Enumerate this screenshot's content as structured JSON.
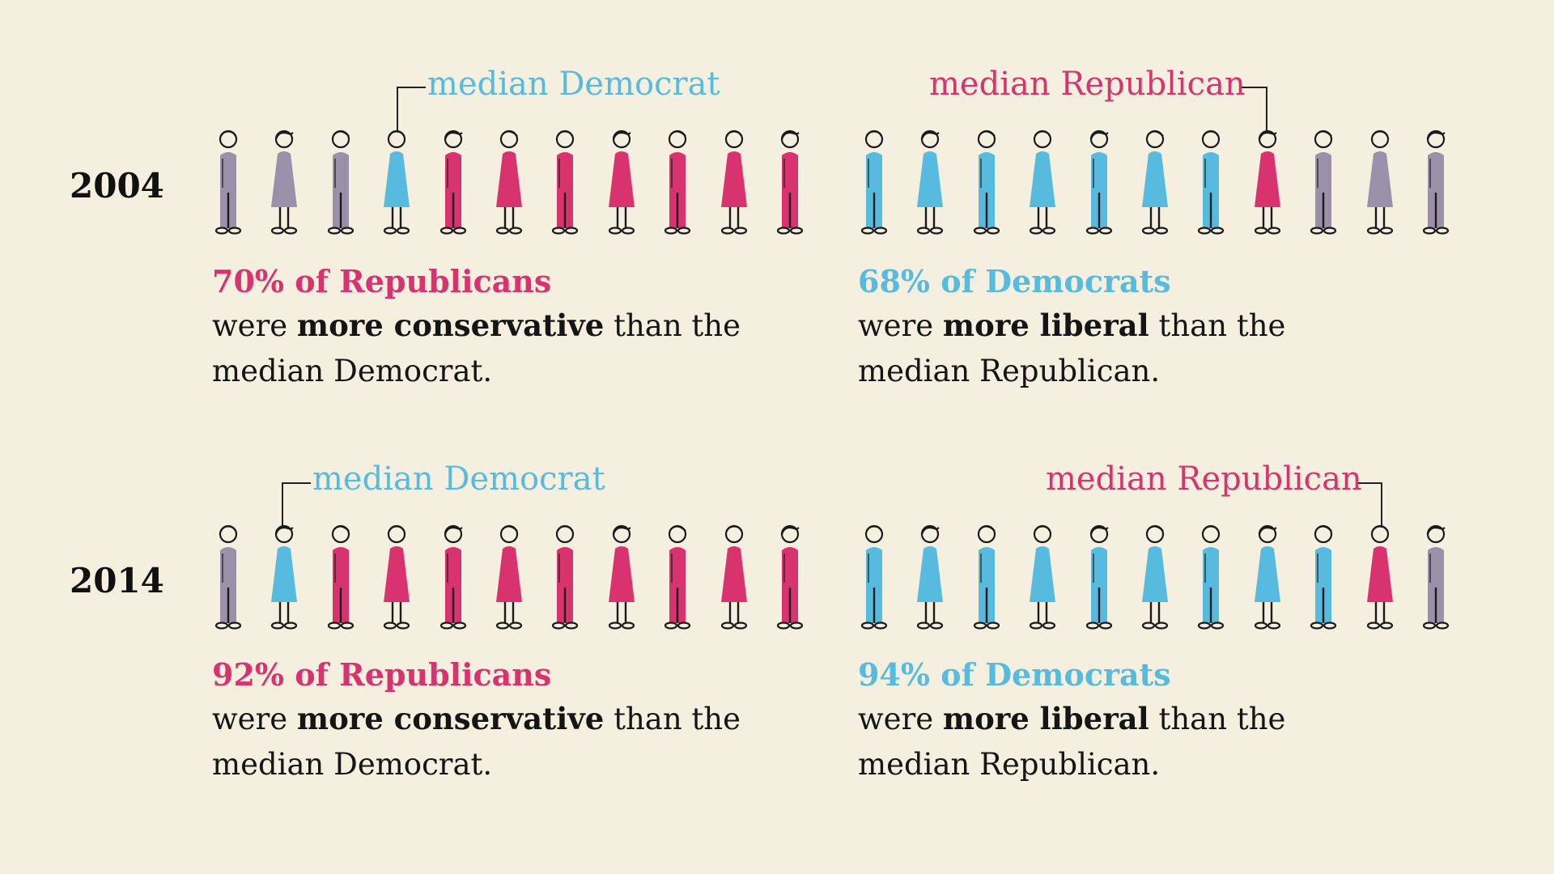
{
  "colors": {
    "background": "#f4efdf",
    "democrat": "#57bbdf",
    "republican": "#d9336f",
    "independent": "#9b8fa9",
    "ink": "#1a1a1a"
  },
  "panels": [
    {
      "year": "2004",
      "republicans": {
        "median_label": "median Democrat",
        "people_colors": [
          "independent",
          "independent",
          "independent",
          "democrat",
          "republican",
          "republican",
          "republican",
          "republican",
          "republican",
          "republican",
          "republican"
        ],
        "median_index": 3,
        "headline": "70% of Republicans",
        "body_pre": "were ",
        "body_bold": "more conservative",
        "body_post": " than the",
        "body_line2": "median Democrat."
      },
      "democrats": {
        "median_label": "median Republican",
        "people_colors": [
          "democrat",
          "democrat",
          "democrat",
          "democrat",
          "democrat",
          "democrat",
          "democrat",
          "republican",
          "independent",
          "independent",
          "independent"
        ],
        "median_index": 7,
        "headline": "68% of Democrats",
        "body_pre": "were ",
        "body_bold": "more liberal",
        "body_post": " than the",
        "body_line2": "median Republican."
      }
    },
    {
      "year": "2014",
      "republicans": {
        "median_label": "median Democrat",
        "people_colors": [
          "independent",
          "democrat",
          "republican",
          "republican",
          "republican",
          "republican",
          "republican",
          "republican",
          "republican",
          "republican",
          "republican"
        ],
        "median_index": 1,
        "headline": "92% of Republicans",
        "body_pre": "were ",
        "body_bold": "more conservative",
        "body_post": " than the",
        "body_line2": "median Democrat."
      },
      "democrats": {
        "median_label": "median Republican",
        "people_colors": [
          "democrat",
          "democrat",
          "democrat",
          "democrat",
          "democrat",
          "democrat",
          "democrat",
          "democrat",
          "democrat",
          "republican",
          "independent"
        ],
        "median_index": 9,
        "headline": "94% of Democrats",
        "body_pre": "were ",
        "body_bold": "more liberal",
        "body_post": " than the",
        "body_line2": "median Republican."
      }
    }
  ]
}
